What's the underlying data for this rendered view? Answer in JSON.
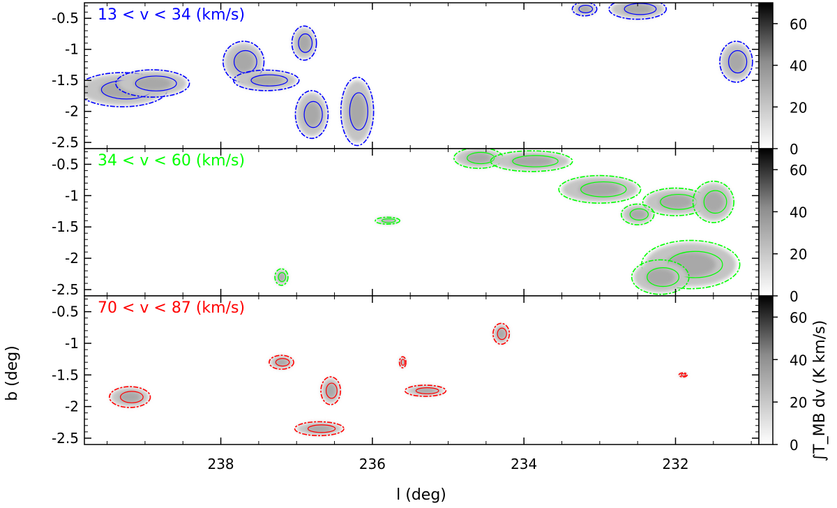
{
  "figure": {
    "xlabel": "l (deg)",
    "ylabel": "b (deg)",
    "colorbar_label": "∫T_MB dv (K km/s)"
  },
  "chart_data": [
    {
      "type": "heatmap",
      "panel_label": "13 < v < 34 (km/s)",
      "contour_color": "#0000ff",
      "xlim": [
        239.8,
        230.9
      ],
      "ylim": [
        -2.6,
        -0.25
      ],
      "x_ticks": [
        238,
        236,
        234,
        232
      ],
      "y_ticks": [
        -0.5,
        -1,
        -1.5,
        -2,
        -2.5
      ],
      "y_tick_labels": [
        "-0.5",
        "-1",
        "-1.5",
        "-2",
        "-2.5"
      ],
      "colorbar": {
        "range": [
          0,
          70
        ],
        "ticks": [
          0,
          20,
          40,
          60
        ]
      },
      "clumps": [
        {
          "l": 239.3,
          "b": -1.65,
          "dl": 0.55,
          "db": 0.25
        },
        {
          "l": 238.9,
          "b": -1.55,
          "dl": 0.45,
          "db": 0.2
        },
        {
          "l": 237.7,
          "b": -1.2,
          "dl": 0.25,
          "db": 0.3
        },
        {
          "l": 237.4,
          "b": -1.5,
          "dl": 0.4,
          "db": 0.15
        },
        {
          "l": 236.9,
          "b": -0.9,
          "dl": 0.15,
          "db": 0.25
        },
        {
          "l": 236.8,
          "b": -2.05,
          "dl": 0.2,
          "db": 0.35
        },
        {
          "l": 236.2,
          "b": -2.0,
          "dl": 0.2,
          "db": 0.5
        },
        {
          "l": 232.5,
          "b": -0.35,
          "dl": 0.35,
          "db": 0.15
        },
        {
          "l": 233.2,
          "b": -0.35,
          "dl": 0.15,
          "db": 0.1
        },
        {
          "l": 231.2,
          "b": -1.2,
          "dl": 0.2,
          "db": 0.3
        }
      ]
    },
    {
      "type": "heatmap",
      "panel_label": "34 < v < 60 (km/s)",
      "contour_color": "#00ff00",
      "xlim": [
        239.8,
        230.9
      ],
      "ylim": [
        -2.6,
        -0.25
      ],
      "x_ticks": [
        238,
        236,
        234,
        232
      ],
      "y_ticks": [
        -0.5,
        -1,
        -1.5,
        -2,
        -2.5
      ],
      "y_tick_labels": [
        "-0.5",
        "-1",
        "-1.5",
        "-2",
        "-2.5"
      ],
      "colorbar": {
        "range": [
          0,
          70
        ],
        "ticks": [
          0,
          20,
          40,
          60
        ]
      },
      "clumps": [
        {
          "l": 234.6,
          "b": -0.4,
          "dl": 0.3,
          "db": 0.15
        },
        {
          "l": 233.9,
          "b": -0.45,
          "dl": 0.5,
          "db": 0.15
        },
        {
          "l": 233.0,
          "b": -0.9,
          "dl": 0.5,
          "db": 0.2
        },
        {
          "l": 232.0,
          "b": -1.1,
          "dl": 0.4,
          "db": 0.2
        },
        {
          "l": 231.5,
          "b": -1.1,
          "dl": 0.25,
          "db": 0.3
        },
        {
          "l": 232.5,
          "b": -1.3,
          "dl": 0.2,
          "db": 0.15
        },
        {
          "l": 231.8,
          "b": -2.1,
          "dl": 0.6,
          "db": 0.35
        },
        {
          "l": 232.2,
          "b": -2.3,
          "dl": 0.35,
          "db": 0.25
        },
        {
          "l": 235.8,
          "b": -1.4,
          "dl": 0.15,
          "db": 0.05
        },
        {
          "l": 237.2,
          "b": -2.3,
          "dl": 0.08,
          "db": 0.12
        }
      ]
    },
    {
      "type": "heatmap",
      "panel_label": "70 < v < 87 (km/s)",
      "contour_color": "#ff0000",
      "xlim": [
        239.8,
        230.9
      ],
      "ylim": [
        -2.6,
        -0.25
      ],
      "x_ticks": [
        238,
        236,
        234,
        232
      ],
      "x_tick_labels": [
        "238",
        "236",
        "234",
        "232"
      ],
      "y_ticks": [
        -0.5,
        -1,
        -1.5,
        -2,
        -2.5
      ],
      "y_tick_labels": [
        "-0.5",
        "-1",
        "-1.5",
        "-2",
        "-2.5"
      ],
      "colorbar": {
        "range": [
          0,
          70
        ],
        "ticks": [
          0,
          20,
          40,
          60
        ]
      },
      "clumps": [
        {
          "l": 239.2,
          "b": -1.85,
          "dl": 0.25,
          "db": 0.15
        },
        {
          "l": 237.2,
          "b": -1.3,
          "dl": 0.15,
          "db": 0.1
        },
        {
          "l": 236.55,
          "b": -1.75,
          "dl": 0.12,
          "db": 0.2
        },
        {
          "l": 236.7,
          "b": -2.35,
          "dl": 0.3,
          "db": 0.1
        },
        {
          "l": 235.3,
          "b": -1.75,
          "dl": 0.25,
          "db": 0.08
        },
        {
          "l": 234.3,
          "b": -0.85,
          "dl": 0.1,
          "db": 0.15
        },
        {
          "l": 235.6,
          "b": -1.3,
          "dl": 0.04,
          "db": 0.08
        },
        {
          "l": 231.9,
          "b": -1.5,
          "dl": 0.05,
          "db": 0.03
        }
      ]
    }
  ]
}
